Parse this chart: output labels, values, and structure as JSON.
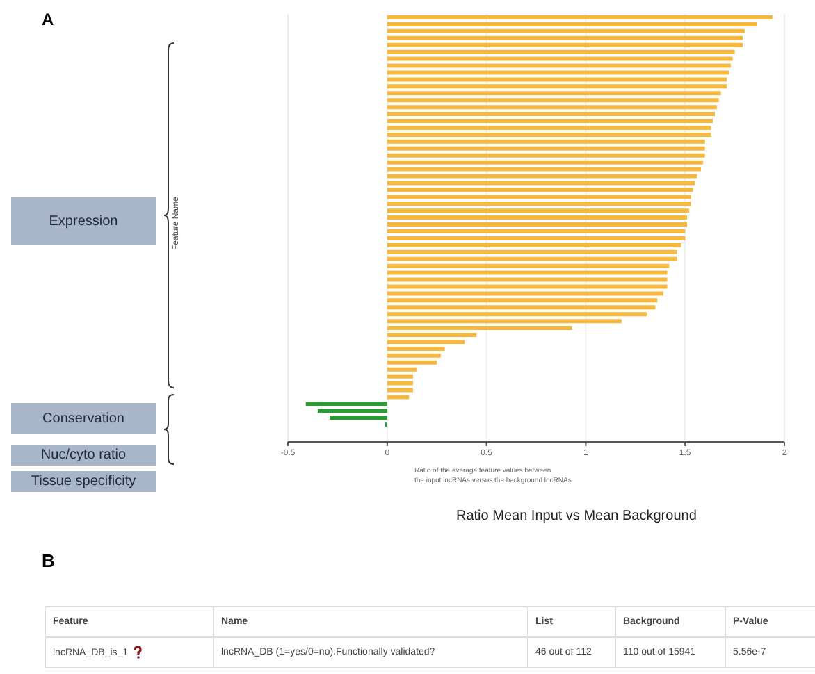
{
  "chart_data": {
    "type": "bar",
    "orientation": "horizontal",
    "categories": [
      null,
      null,
      null,
      null,
      null,
      null,
      null,
      null,
      null,
      null,
      null,
      null,
      null,
      null,
      null,
      null,
      null,
      null,
      null,
      null,
      null,
      null,
      null,
      null,
      null,
      null,
      null,
      null,
      null,
      null,
      null,
      null,
      null,
      null,
      null,
      null,
      null,
      null,
      null,
      null,
      null,
      null,
      null,
      null,
      null,
      null,
      null,
      null,
      null,
      null,
      null,
      null,
      null,
      null,
      null,
      null,
      null,
      null,
      null,
      null,
      null,
      null
    ],
    "values": [
      1.94,
      1.86,
      1.8,
      1.79,
      1.79,
      1.75,
      1.74,
      1.73,
      1.72,
      1.71,
      1.71,
      1.68,
      1.67,
      1.66,
      1.65,
      1.64,
      1.63,
      1.63,
      1.6,
      1.6,
      1.6,
      1.59,
      1.58,
      1.56,
      1.55,
      1.54,
      1.53,
      1.53,
      1.52,
      1.51,
      1.51,
      1.5,
      1.5,
      1.48,
      1.46,
      1.46,
      1.42,
      1.41,
      1.41,
      1.41,
      1.39,
      1.36,
      1.35,
      1.31,
      1.18,
      0.93,
      0.45,
      0.39,
      0.29,
      0.27,
      0.25,
      0.15,
      0.13,
      0.13,
      0.13,
      0.11,
      -0.41,
      -0.35,
      -0.29,
      -0.01,
      null,
      null
    ],
    "colors": [
      "#f5b942",
      "#f5b942",
      "#f5b942",
      "#f5b942",
      "#f5b942",
      "#f5b942",
      "#f5b942",
      "#f5b942",
      "#f5b942",
      "#f5b942",
      "#f5b942",
      "#f5b942",
      "#f5b942",
      "#f5b942",
      "#f5b942",
      "#f5b942",
      "#f5b942",
      "#f5b942",
      "#f5b942",
      "#f5b942",
      "#f5b942",
      "#f5b942",
      "#f5b942",
      "#f5b942",
      "#f5b942",
      "#f5b942",
      "#f5b942",
      "#f5b942",
      "#f5b942",
      "#f5b942",
      "#f5b942",
      "#f5b942",
      "#f5b942",
      "#f5b942",
      "#f5b942",
      "#f5b942",
      "#f5b942",
      "#f5b942",
      "#f5b942",
      "#f5b942",
      "#f5b942",
      "#f5b942",
      "#f5b942",
      "#f5b942",
      "#f5b942",
      "#f5b942",
      "#f5b942",
      "#f5b942",
      "#f5b942",
      "#f5b942",
      "#f5b942",
      "#f5b942",
      "#f5b942",
      "#f5b942",
      "#f5b942",
      "#f5b942",
      "#2e9a36",
      "#2e9a36",
      "#2e9a36",
      "#2e9a36",
      "#2e9a36",
      "#2e9a36"
    ],
    "xlim": [
      -0.5,
      2
    ],
    "xticks": [
      -0.5,
      0,
      0.5,
      1,
      1.5,
      2
    ],
    "grid": "x",
    "xlabel": "Ratio of the average feature values between\nthe input lncRNAs versus the background lncRNAs",
    "annotations": [
      "A",
      "Expression",
      "Conservation",
      "Nuc/cyto ratio",
      "Tissue specificity",
      "Ratio Mean Input vs Mean Background",
      "B",
      "Feature",
      "Name",
      "List",
      "Background",
      "P-Value",
      "lncRNA_DB_is_1",
      "lncRNA_DB (1=yes/0=no).Functionally validated?",
      "46 out of 112",
      "110 out of 15941",
      "5.56e-7",
      "Feature Name"
    ]
  }
}
